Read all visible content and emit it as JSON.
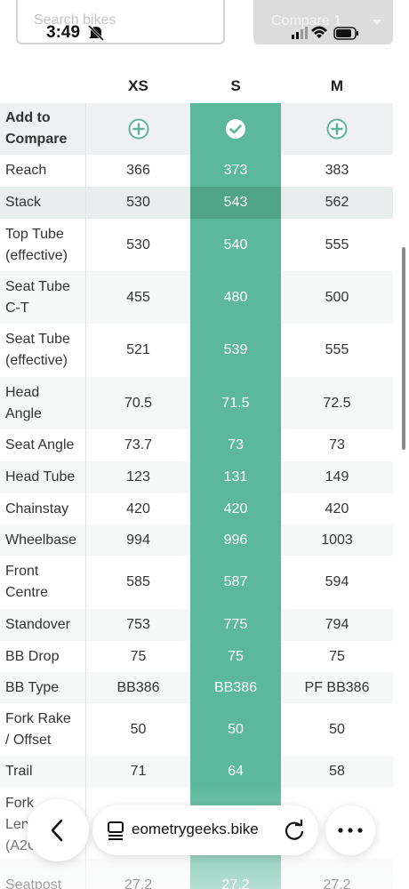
{
  "status_bar": {
    "time": "3:49"
  },
  "toolbar": {
    "search_placeholder": "Search bikes",
    "compare_button": "Compare 1"
  },
  "table": {
    "columns": [
      "XS",
      "S",
      "M"
    ],
    "add_row_label": "Add to Compare",
    "rows": [
      {
        "label": "Reach",
        "values": [
          "366",
          "373",
          "383"
        ]
      },
      {
        "label": "Stack",
        "values": [
          "530",
          "543",
          "562"
        ]
      },
      {
        "label": "Top Tube (effective)",
        "values": [
          "530",
          "540",
          "555"
        ]
      },
      {
        "label": "Seat Tube C-T",
        "values": [
          "455",
          "480",
          "500"
        ]
      },
      {
        "label": "Seat Tube (effective)",
        "values": [
          "521",
          "539",
          "555"
        ]
      },
      {
        "label": "Head Angle",
        "values": [
          "70.5",
          "71.5",
          "72.5"
        ]
      },
      {
        "label": "Seat Angle",
        "values": [
          "73.7",
          "73",
          "73"
        ]
      },
      {
        "label": "Head Tube",
        "values": [
          "123",
          "131",
          "149"
        ]
      },
      {
        "label": "Chainstay",
        "values": [
          "420",
          "420",
          "420"
        ]
      },
      {
        "label": "Wheelbase",
        "values": [
          "994",
          "996",
          "1003"
        ]
      },
      {
        "label": "Front Centre",
        "values": [
          "585",
          "587",
          "594"
        ]
      },
      {
        "label": "Standover",
        "values": [
          "753",
          "775",
          "794"
        ]
      },
      {
        "label": "BB Drop",
        "values": [
          "75",
          "75",
          "75"
        ]
      },
      {
        "label": "BB Type",
        "values": [
          "BB386",
          "BB386",
          "PF BB386"
        ]
      },
      {
        "label": "Fork Rake / Offset",
        "values": [
          "50",
          "50",
          "50"
        ]
      },
      {
        "label": "Trail",
        "values": [
          "71",
          "64",
          "58"
        ]
      },
      {
        "label": "Fork Length (A2C)"
      },
      {
        "label": "Seatpost",
        "values": [
          "27.2",
          "27.2",
          "27.2"
        ]
      }
    ]
  },
  "browser_bar": {
    "url": "eometrygeeks.bike"
  }
}
